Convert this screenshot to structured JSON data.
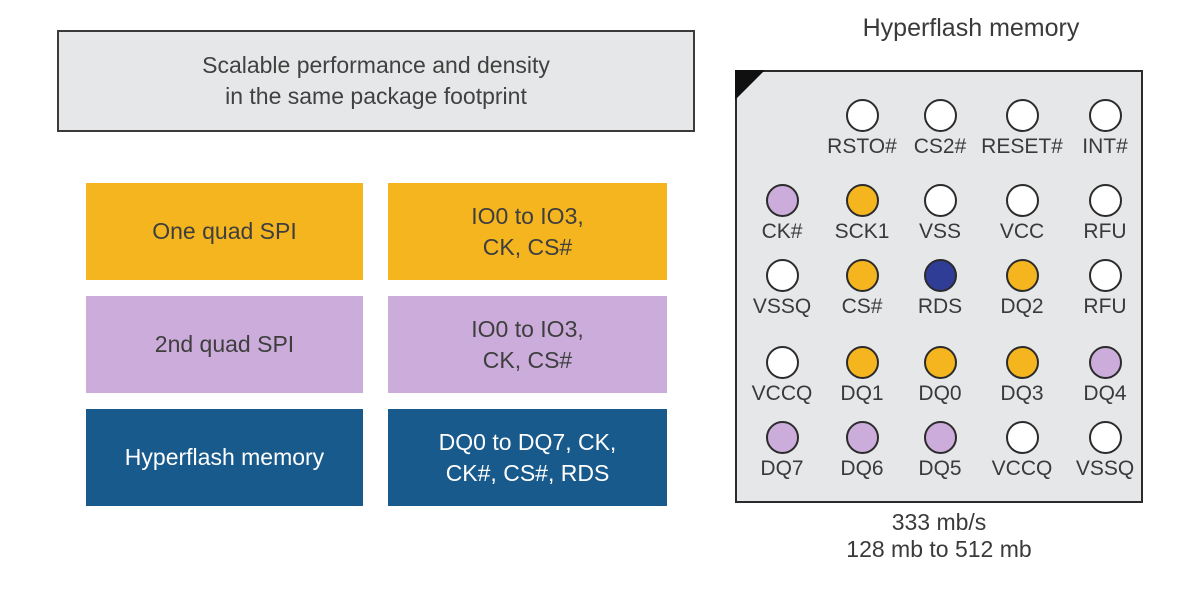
{
  "header": {
    "text": "Scalable performance and density\nin the same package footprint"
  },
  "interfaces": [
    {
      "name": "One quad SPI",
      "signals": "IO0 to IO3,\nCK, CS#",
      "color": "#F5B51F",
      "text_color": "#3E3E3E"
    },
    {
      "name": "2nd quad SPI",
      "signals": "IO0 to IO3,\nCK, CS#",
      "color": "#CBACDA",
      "text_color": "#3E3E3E"
    },
    {
      "name": "Hyperflash memory",
      "signals": "DQ0 to DQ7, CK,\nCK#, CS#, RDS",
      "color": "#185A8C",
      "text_color": "#FFFFFF"
    }
  ],
  "package": {
    "title": "Hyperflash memory",
    "caption": "333 mb/s\n128 mb to 512 mb",
    "ball_colors": {
      "white": "#FFFFFF",
      "yellow": "#F5B51F",
      "lavender": "#CBACDA",
      "navy": "#2F3D96"
    },
    "rows": [
      {
        "balls": [
          {
            "label": "RSTO#",
            "color": "white",
            "col": 2
          },
          {
            "label": "CS2#",
            "color": "white",
            "col": 3
          },
          {
            "label": "RESET#",
            "color": "white",
            "col": 4
          },
          {
            "label": "INT#",
            "color": "white",
            "col": 5
          }
        ]
      },
      {
        "balls": [
          {
            "label": "CK#",
            "color": "lavender",
            "col": 1
          },
          {
            "label": "SCK1",
            "color": "yellow",
            "col": 2
          },
          {
            "label": "VSS",
            "color": "white",
            "col": 3
          },
          {
            "label": "VCC",
            "color": "white",
            "col": 4
          },
          {
            "label": "RFU",
            "color": "white",
            "col": 5
          }
        ]
      },
      {
        "balls": [
          {
            "label": "VSSQ",
            "color": "white",
            "col": 1
          },
          {
            "label": "CS#",
            "color": "yellow",
            "col": 2
          },
          {
            "label": "RDS",
            "color": "navy",
            "col": 3
          },
          {
            "label": "DQ2",
            "color": "yellow",
            "col": 4
          },
          {
            "label": "RFU",
            "color": "white",
            "col": 5
          }
        ]
      },
      {
        "balls": [
          {
            "label": "VCCQ",
            "color": "white",
            "col": 1
          },
          {
            "label": "DQ1",
            "color": "yellow",
            "col": 2
          },
          {
            "label": "DQ0",
            "color": "yellow",
            "col": 3
          },
          {
            "label": "DQ3",
            "color": "yellow",
            "col": 4
          },
          {
            "label": "DQ4",
            "color": "lavender",
            "col": 5
          }
        ]
      },
      {
        "balls": [
          {
            "label": "DQ7",
            "color": "lavender",
            "col": 1
          },
          {
            "label": "DQ6",
            "color": "lavender",
            "col": 2
          },
          {
            "label": "DQ5",
            "color": "lavender",
            "col": 3
          },
          {
            "label": "VCCQ",
            "color": "white",
            "col": 4
          },
          {
            "label": "VSSQ",
            "color": "white",
            "col": 5
          }
        ]
      }
    ]
  }
}
